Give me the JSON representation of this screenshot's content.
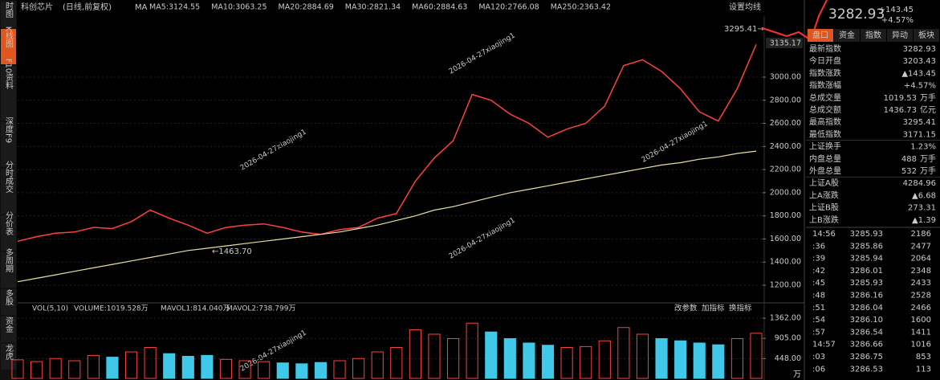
{
  "sidebar": {
    "tabs": [
      {
        "text": "时图",
        "active": false
      },
      {
        "text": "K线图",
        "active": true
      },
      {
        "text": "F10资料",
        "active": false
      },
      {
        "text": "深度F9",
        "active": false
      },
      {
        "text": "分时成交",
        "active": false
      },
      {
        "text": "分价表",
        "active": false
      },
      {
        "text": "多周期",
        "active": false
      },
      {
        "text": "多股",
        "active": false
      },
      {
        "text": "资金",
        "active": false
      },
      {
        "text": "龙虎",
        "active": false
      }
    ]
  },
  "header": {
    "name": "科创芯片",
    "mode": "(日线,前复权)",
    "ma_title": "MA",
    "ma": [
      {
        "text": "MA5:3124.55",
        "color": "#ffffff"
      },
      {
        "text": "MA10:3063.25",
        "color": "#f0e040"
      },
      {
        "text": "MA20:2884.69",
        "color": "#e040e0"
      },
      {
        "text": "MA30:2821.34",
        "color": "#40e040"
      },
      {
        "text": "MA60:2884.63",
        "color": "#d8d8d8"
      },
      {
        "text": "MA120:2766.08",
        "color": "#40c8e8"
      },
      {
        "text": "MA250:2363.42",
        "color": "#f0e0a0"
      }
    ],
    "settings": "设置均线"
  },
  "annotations": {
    "high": "3295.41→",
    "low": "←1463.70",
    "last": "3135.17",
    "watermark": "2026-04-27xiaojing1"
  },
  "volume_header": {
    "title": "VOL(5,10)",
    "volume": "VOLUME:1019.528万",
    "mavol1": "MAVOL1:814.040万",
    "mavol2": "MAVOL2:738.799万",
    "buttons": [
      "改参数",
      "加指标",
      "换指标"
    ],
    "unit": "万"
  },
  "chart_data": [
    {
      "type": "line",
      "ylim": [
        1082,
        3389
      ],
      "grid": true,
      "yticks": [
        {
          "value": 3000,
          "label": "3000.00"
        },
        {
          "value": 2800,
          "label": "2800.00"
        },
        {
          "value": 2600,
          "label": "2600.00"
        },
        {
          "value": 2400,
          "label": "2400.00"
        },
        {
          "value": 2200,
          "label": "2200.00"
        },
        {
          "value": 2000,
          "label": "2000.00"
        },
        {
          "value": 1800,
          "label": "1800.00"
        },
        {
          "value": 1600,
          "label": "1600.00"
        },
        {
          "value": 1400,
          "label": "1400.00"
        },
        {
          "value": 1200,
          "label": "1200.00"
        }
      ],
      "series": [
        {
          "color": "#ff4040",
          "values": [
            1580,
            1620,
            1650,
            1660,
            1700,
            1690,
            1750,
            1850,
            1780,
            1720,
            1650,
            1700,
            1720,
            1730,
            1700,
            1660,
            1640,
            1680,
            1700,
            1780,
            1820,
            2100,
            2300,
            2450,
            2850,
            2800,
            2680,
            2600,
            2480,
            2550,
            2600,
            2750,
            3100,
            3150,
            3050,
            2900,
            2700,
            2620,
            2900,
            3282.93
          ]
        },
        {
          "color": "#e8e0a0",
          "values": [
            1230,
            1260,
            1290,
            1320,
            1350,
            1380,
            1410,
            1440,
            1470,
            1500,
            1520,
            1540,
            1560,
            1580,
            1600,
            1620,
            1640,
            1660,
            1690,
            1720,
            1760,
            1800,
            1850,
            1880,
            1920,
            1960,
            2000,
            2030,
            2060,
            2090,
            2120,
            2150,
            2180,
            2210,
            2240,
            2260,
            2290,
            2310,
            2340,
            2360
          ]
        }
      ]
    },
    {
      "type": "bar",
      "ylim": [
        0,
        1563
      ],
      "grid": true,
      "yticks": [
        {
          "value": 1362,
          "label": "1362.00"
        },
        {
          "value": 905,
          "label": "905.00"
        },
        {
          "value": 448,
          "label": "448.00"
        }
      ],
      "series": [
        {
          "values": [
            420,
            380,
            450,
            400,
            520,
            480,
            600,
            700,
            560,
            500,
            520,
            430,
            400,
            380,
            350,
            330,
            360,
            400,
            450,
            600,
            700,
            1100,
            1000,
            900,
            1250,
            1050,
            900,
            800,
            750,
            700,
            720,
            850,
            1150,
            1000,
            900,
            850,
            800,
            760,
            900,
            1019.53
          ]
        }
      ]
    }
  ],
  "right_panel": {
    "price": "3282.93",
    "change": "+143.45",
    "pct": "+4.57%",
    "tabs": [
      "盘口",
      "资金",
      "指数",
      "异动",
      "板块"
    ],
    "rows": [
      {
        "label": "最新指数",
        "value": "3282.93",
        "unit": "",
        "color": "#ff4040"
      },
      {
        "label": "今日开盘",
        "value": "3203.43",
        "unit": "",
        "color": "#ff4040"
      },
      {
        "label": "指数涨跌",
        "value": "▲143.45",
        "unit": "",
        "color": "#ff4040"
      },
      {
        "label": "指数涨幅",
        "value": "+4.57%",
        "unit": "",
        "color": "#ff4040"
      },
      {
        "label": "总成交量",
        "value": "1019.53",
        "unit": "万手",
        "color": "#e0e0e0"
      },
      {
        "label": "总成交额",
        "value": "1436.73",
        "unit": "亿元",
        "color": "#40d8f0"
      },
      {
        "label": "最高指数",
        "value": "3295.41",
        "unit": "",
        "color": "#ff4040"
      },
      {
        "label": "最低指数",
        "value": "3171.15",
        "unit": "",
        "color": "#ff4040"
      },
      {
        "label": "上证换手",
        "value": "1.23%",
        "unit": "",
        "color": "#e0e0e0"
      },
      {
        "label": "内盘总量",
        "value": "488",
        "unit": "万手",
        "color": "#30e030"
      },
      {
        "label": "外盘总量",
        "value": "532",
        "unit": "万手",
        "color": "#ff4040"
      },
      {
        "label": "上证A股",
        "value": "4284.96",
        "unit": "",
        "color": "#ff4040"
      },
      {
        "label": "上A涨跌",
        "value": "▲6.68",
        "unit": "",
        "color": "#ff4040"
      },
      {
        "label": "上证B股",
        "value": "273.31",
        "unit": "",
        "color": "#ff4040"
      },
      {
        "label": "上B涨跌",
        "value": "▲1.39",
        "unit": "",
        "color": "#ff4040"
      }
    ],
    "trades": [
      {
        "time": "14:56",
        "price": "3285.93",
        "vol": "2186",
        "color": "#ff4040"
      },
      {
        "time": ":36",
        "price": "3285.86",
        "vol": "2477",
        "color": "#ff4040"
      },
      {
        "time": ":39",
        "price": "3285.94",
        "vol": "2064",
        "color": "#ff4040"
      },
      {
        "time": ":42",
        "price": "3286.01",
        "vol": "2348",
        "color": "#ff4040"
      },
      {
        "time": ":45",
        "price": "3285.93",
        "vol": "2433",
        "color": "#30e030"
      },
      {
        "time": ":48",
        "price": "3286.16",
        "vol": "2528",
        "color": "#ff4040"
      },
      {
        "time": ":51",
        "price": "3286.04",
        "vol": "2466",
        "color": "#30e030"
      },
      {
        "time": ":54",
        "price": "3286.10",
        "vol": "1600",
        "color": "#ff4040"
      },
      {
        "time": ":57",
        "price": "3286.54",
        "vol": "1411",
        "color": "#ff4040"
      },
      {
        "time": "14:57",
        "price": "3286.66",
        "vol": "1016",
        "color": "#ff4040"
      },
      {
        "time": ":03",
        "price": "3286.75",
        "vol": "853",
        "color": "#ff4040"
      },
      {
        "time": ":06",
        "price": "3286.53",
        "vol": "113",
        "color": "#30e030"
      }
    ]
  }
}
